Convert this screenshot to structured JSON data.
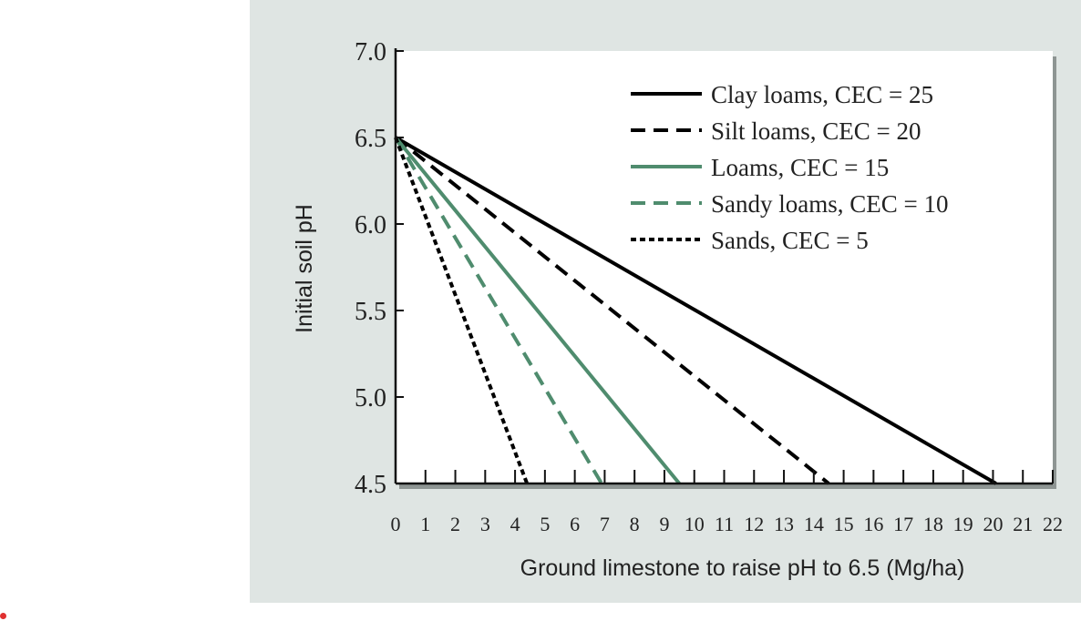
{
  "chart_data": {
    "type": "line",
    "title": "",
    "xlabel": "Ground limestone to raise pH to 6.5 (Mg/ha)",
    "ylabel": "Initial soil pH",
    "xlim": [
      0,
      22
    ],
    "ylim": [
      4.5,
      7.0
    ],
    "x_ticks": [
      0,
      1,
      2,
      3,
      4,
      5,
      6,
      7,
      8,
      9,
      10,
      11,
      12,
      13,
      14,
      15,
      16,
      17,
      18,
      19,
      20,
      21,
      22
    ],
    "y_ticks": [
      "7.0",
      "6.5",
      "6.0",
      "5.5",
      "5.0",
      "4.5"
    ],
    "legend_position": "top-right",
    "grid": false,
    "series": [
      {
        "name": "Clay loams, CEC = 25",
        "color": "#000000",
        "dash": "solid",
        "points": [
          [
            0,
            6.5
          ],
          [
            20.1,
            4.5
          ]
        ]
      },
      {
        "name": "Silt loams, CEC = 20",
        "color": "#000000",
        "dash": "dashed",
        "points": [
          [
            0,
            6.5
          ],
          [
            14.5,
            4.5
          ]
        ]
      },
      {
        "name": "Loams, CEC = 15",
        "color": "#4f8c6e",
        "dash": "solid",
        "points": [
          [
            0,
            6.5
          ],
          [
            9.5,
            4.5
          ]
        ]
      },
      {
        "name": "Sandy loams, CEC = 10",
        "color": "#4f8c6e",
        "dash": "dashed",
        "points": [
          [
            0,
            6.5
          ],
          [
            6.9,
            4.5
          ]
        ]
      },
      {
        "name": "Sands, CEC = 5",
        "color": "#000000",
        "dash": "dotted",
        "points": [
          [
            0,
            6.5
          ],
          [
            4.4,
            4.5
          ]
        ]
      }
    ]
  }
}
